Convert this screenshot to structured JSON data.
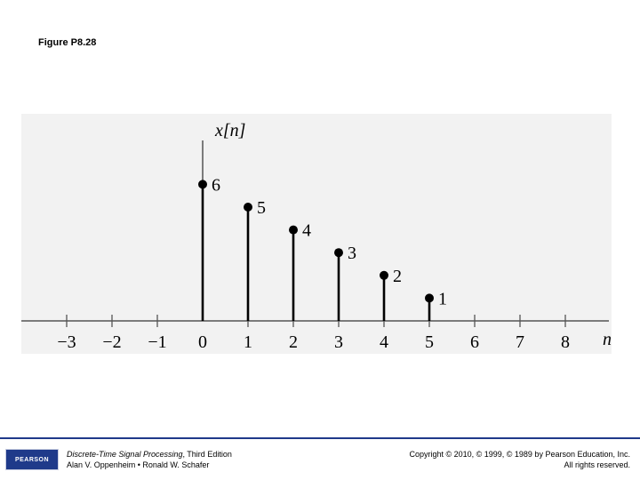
{
  "figure_title": "Figure P8.28",
  "chart_data": {
    "type": "stem",
    "ylabel": "x[n]",
    "xlabel": "n",
    "x_ticks": [
      -3,
      -2,
      -1,
      0,
      1,
      2,
      3,
      4,
      5,
      6,
      7,
      8
    ],
    "x_tick_labels": [
      "−3",
      "−2",
      "−1",
      "0",
      "1",
      "2",
      "3",
      "4",
      "5",
      "6",
      "7",
      "8"
    ],
    "x": [
      0,
      1,
      2,
      3,
      4,
      5
    ],
    "values": [
      6,
      5,
      4,
      3,
      2,
      1
    ],
    "value_labels": [
      "6",
      "5",
      "4",
      "3",
      "2",
      "1"
    ],
    "xlim": [
      -4,
      9
    ],
    "ylim": [
      0,
      8
    ],
    "grid": false,
    "background_color": "#f2f2f2"
  },
  "footer": {
    "logo_text": "PEARSON",
    "book_title": "Discrete-Time Signal Processing",
    "book_edition": ", Third Edition",
    "authors": "Alan V. Oppenheim • Ronald W. Schafer",
    "copyright": "Copyright © 2010, © 1999, © 1989 by Pearson Education, Inc.",
    "rights": "All rights reserved.",
    "accent_color": "#1f3a8a"
  }
}
